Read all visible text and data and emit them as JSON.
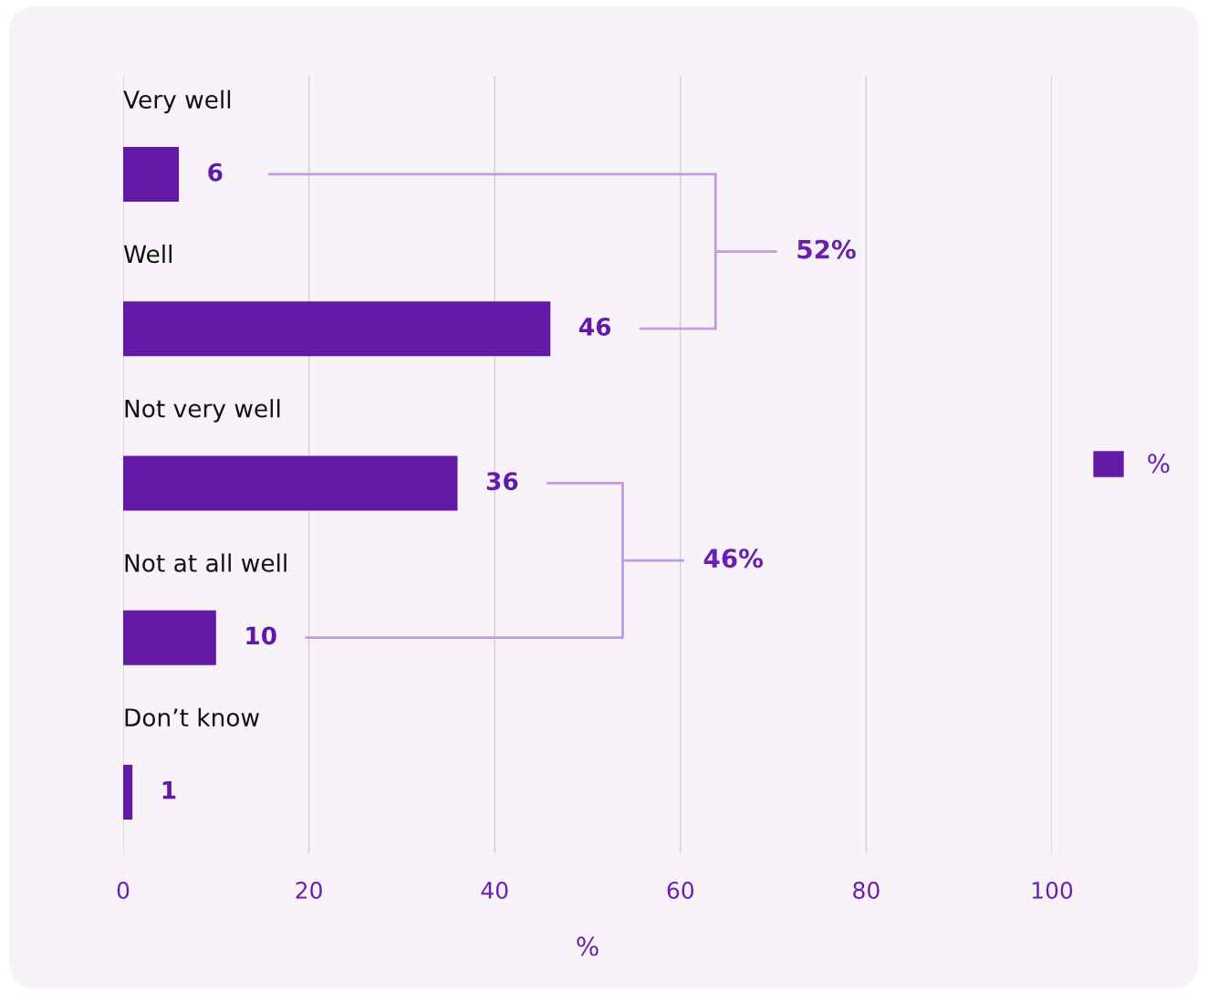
{
  "chart_data": {
    "type": "bar",
    "orientation": "horizontal",
    "categories": [
      "Very well",
      "Well",
      "Not very well",
      "Not at all well",
      "Don’t know"
    ],
    "series": [
      {
        "name": "%",
        "color": "#6119a6",
        "values": [
          6,
          46,
          36,
          10,
          1
        ]
      }
    ],
    "xlabel": "%",
    "xlim": [
      0,
      100
    ],
    "xticks": [
      0,
      20,
      40,
      60,
      80,
      100
    ],
    "grid": "x",
    "legend": "right",
    "data_labels": true,
    "annotations": [
      "52%",
      "46%"
    ]
  }
}
